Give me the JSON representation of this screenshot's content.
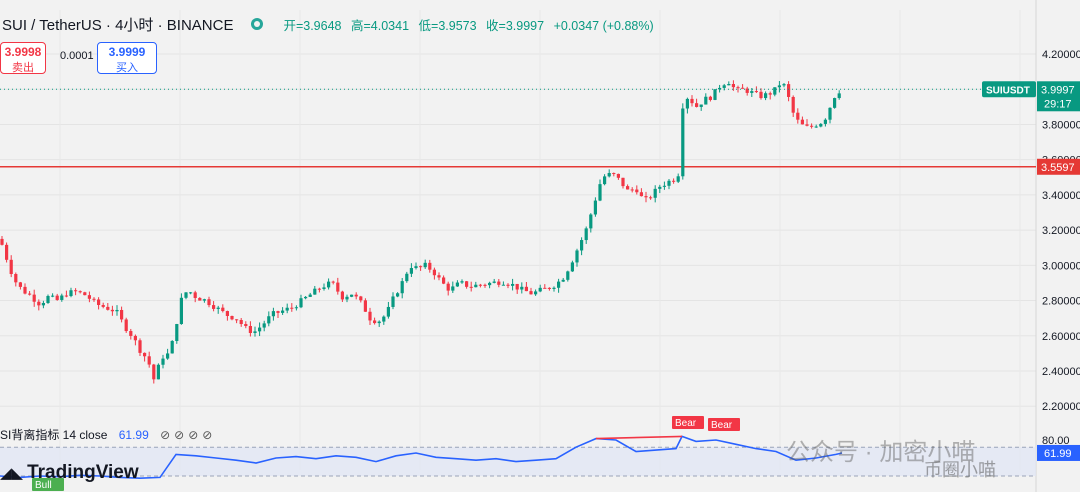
{
  "header": {
    "symbol": "SUI / TetherUS · 4小时 · BINANCE",
    "open": "开=3.9648",
    "high": "高=4.0341",
    "low": "低=3.9573",
    "close": "收=3.9997",
    "change": "+0.0347 (+0.88%)"
  },
  "trade": {
    "sell_price": "3.9998",
    "sell_label": "卖出",
    "spread": "0.0001",
    "buy_price": "3.9999",
    "buy_label": "买入"
  },
  "indicator": {
    "label": "SI背离指标 14 close",
    "value": "61.99",
    "icons": "⊘⊘⊘⊘"
  },
  "watermarks": {
    "brand": "TradingView",
    "account": "公众号 · 加密小喵",
    "account2": "币圈小喵"
  },
  "colors": {
    "up": "#089981",
    "down": "#f23645",
    "rsi": "#2962ff",
    "hline": "#e53935"
  },
  "chart_data": [
    {
      "type": "candlestick",
      "symbol": "SUIUSDT",
      "y_ticks": [
        "4.20000",
        "4.00000",
        "3.80000",
        "3.60000",
        "3.40000",
        "3.20000",
        "3.00000",
        "2.80000",
        "2.60000",
        "2.40000",
        "2.20000"
      ],
      "y_tick_values": [
        4.2,
        4.0,
        3.8,
        3.6,
        3.4,
        3.2,
        3.0,
        2.8,
        2.6,
        2.4,
        2.2
      ],
      "ylim": [
        2.15,
        4.45
      ],
      "last_price_label": "3.9997",
      "last_price": 3.9997,
      "countdown": "29:17",
      "horizontal_line_label": "3.5597",
      "horizontal_line": 3.5597,
      "price_path": [
        [
          0,
          3.15
        ],
        [
          6,
          3.05
        ],
        [
          14,
          2.92
        ],
        [
          22,
          2.86
        ],
        [
          30,
          2.83
        ],
        [
          40,
          2.78
        ],
        [
          48,
          2.82
        ],
        [
          58,
          2.8
        ],
        [
          66,
          2.84
        ],
        [
          76,
          2.85
        ],
        [
          86,
          2.83
        ],
        [
          96,
          2.78
        ],
        [
          106,
          2.76
        ],
        [
          116,
          2.74
        ],
        [
          124,
          2.66
        ],
        [
          132,
          2.6
        ],
        [
          140,
          2.52
        ],
        [
          148,
          2.46
        ],
        [
          154,
          2.35
        ],
        [
          162,
          2.48
        ],
        [
          170,
          2.5
        ],
        [
          176,
          2.66
        ],
        [
          182,
          2.82
        ],
        [
          188,
          2.86
        ],
        [
          196,
          2.82
        ],
        [
          206,
          2.8
        ],
        [
          216,
          2.76
        ],
        [
          226,
          2.72
        ],
        [
          236,
          2.7
        ],
        [
          246,
          2.64
        ],
        [
          254,
          2.62
        ],
        [
          262,
          2.66
        ],
        [
          272,
          2.72
        ],
        [
          282,
          2.74
        ],
        [
          292,
          2.76
        ],
        [
          302,
          2.8
        ],
        [
          312,
          2.84
        ],
        [
          322,
          2.88
        ],
        [
          332,
          2.9
        ],
        [
          342,
          2.82
        ],
        [
          352,
          2.84
        ],
        [
          362,
          2.78
        ],
        [
          370,
          2.7
        ],
        [
          378,
          2.68
        ],
        [
          386,
          2.72
        ],
        [
          394,
          2.82
        ],
        [
          402,
          2.9
        ],
        [
          410,
          3.0
        ],
        [
          418,
          2.98
        ],
        [
          426,
          3.0
        ],
        [
          434,
          2.96
        ],
        [
          442,
          2.9
        ],
        [
          450,
          2.86
        ],
        [
          460,
          2.9
        ],
        [
          470,
          2.88
        ],
        [
          480,
          2.89
        ],
        [
          492,
          2.9
        ],
        [
          502,
          2.91
        ],
        [
          512,
          2.89
        ],
        [
          522,
          2.86
        ],
        [
          532,
          2.84
        ],
        [
          542,
          2.86
        ],
        [
          552,
          2.88
        ],
        [
          562,
          2.92
        ],
        [
          570,
          3.0
        ],
        [
          578,
          3.1
        ],
        [
          586,
          3.2
        ],
        [
          594,
          3.35
        ],
        [
          602,
          3.5
        ],
        [
          612,
          3.52
        ],
        [
          620,
          3.48
        ],
        [
          628,
          3.42
        ],
        [
          636,
          3.44
        ],
        [
          644,
          3.36
        ],
        [
          652,
          3.4
        ],
        [
          660,
          3.45
        ],
        [
          670,
          3.48
        ],
        [
          678,
          3.5
        ],
        [
          682,
          3.9
        ],
        [
          688,
          3.96
        ],
        [
          696,
          3.9
        ],
        [
          704,
          3.94
        ],
        [
          712,
          3.96
        ],
        [
          720,
          4.02
        ],
        [
          728,
          4.05
        ],
        [
          736,
          3.99
        ],
        [
          744,
          4.0
        ],
        [
          752,
          3.98
        ],
        [
          760,
          3.96
        ],
        [
          768,
          3.97
        ],
        [
          776,
          4.0
        ],
        [
          782,
          4.05
        ],
        [
          788,
          3.96
        ],
        [
          794,
          3.85
        ],
        [
          800,
          3.8
        ],
        [
          808,
          3.78
        ],
        [
          816,
          3.8
        ],
        [
          824,
          3.82
        ],
        [
          830,
          3.9
        ],
        [
          836,
          3.98
        ],
        [
          842,
          4.0
        ]
      ],
      "x_px_range_note": ""
    },
    {
      "type": "line",
      "name": "RSI",
      "value_label": "61.99",
      "value": 61.99,
      "y_tick_label": "80.00",
      "divergence_labels": [
        "Bear",
        "Bear",
        "Bull"
      ],
      "rsi_path": [
        [
          0,
          30
        ],
        [
          20,
          28
        ],
        [
          40,
          30
        ],
        [
          60,
          29
        ],
        [
          80,
          31
        ],
        [
          100,
          30
        ],
        [
          120,
          28
        ],
        [
          140,
          27
        ],
        [
          160,
          28
        ],
        [
          176,
          60
        ],
        [
          196,
          58
        ],
        [
          216,
          55
        ],
        [
          236,
          52
        ],
        [
          256,
          48
        ],
        [
          276,
          55
        ],
        [
          296,
          57
        ],
        [
          316,
          54
        ],
        [
          336,
          58
        ],
        [
          356,
          56
        ],
        [
          376,
          50
        ],
        [
          396,
          58
        ],
        [
          416,
          62
        ],
        [
          436,
          56
        ],
        [
          456,
          54
        ],
        [
          476,
          52
        ],
        [
          496,
          54
        ],
        [
          516,
          50
        ],
        [
          536,
          52
        ],
        [
          556,
          54
        ],
        [
          576,
          70
        ],
        [
          596,
          82
        ],
        [
          616,
          80
        ],
        [
          636,
          64
        ],
        [
          656,
          66
        ],
        [
          676,
          68
        ],
        [
          682,
          85
        ],
        [
          696,
          78
        ],
        [
          716,
          80
        ],
        [
          736,
          74
        ],
        [
          756,
          68
        ],
        [
          776,
          64
        ],
        [
          796,
          52
        ],
        [
          816,
          55
        ],
        [
          836,
          60
        ],
        [
          842,
          61.99
        ]
      ]
    }
  ]
}
